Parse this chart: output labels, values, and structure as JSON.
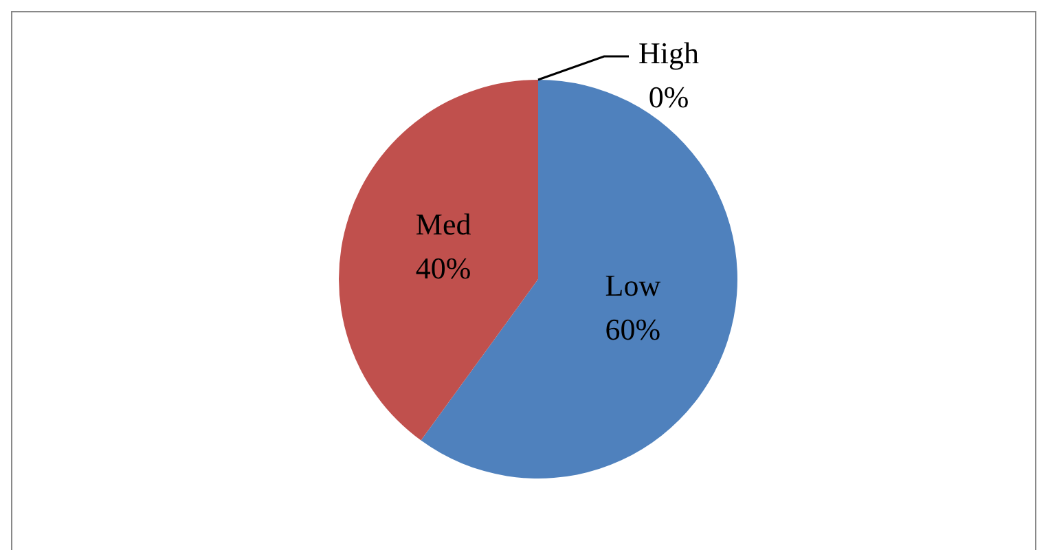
{
  "chart_data": {
    "type": "pie",
    "categories": [
      "Low",
      "Med",
      "High"
    ],
    "values": [
      60,
      40,
      0
    ],
    "colors": [
      "#4f81bd",
      "#c0504d",
      "#9bbb59"
    ],
    "value_labels": [
      "60%",
      "40%",
      "0%"
    ]
  }
}
